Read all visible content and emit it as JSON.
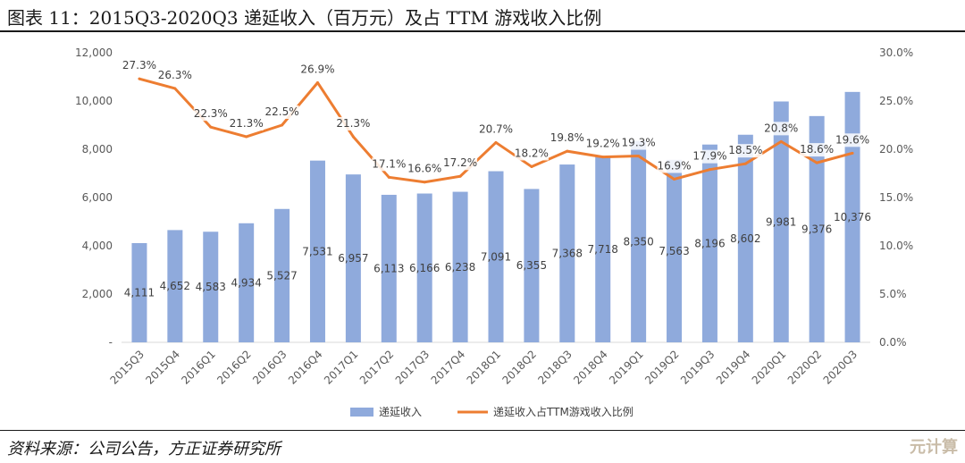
{
  "title": "图表 11：2015Q3-2020Q3 递延收入（百万元）及占 TTM 游戏收入比例",
  "source": "资料来源：公司公告，方正证券研究所",
  "watermark": "元计算",
  "colors": {
    "bar": "#8FAADC",
    "line": "#ED7D31",
    "grid": "#D9D9D9",
    "text": "#595959"
  },
  "chart_data": {
    "type": "bar",
    "title": "",
    "categories": [
      "2015Q3",
      "2015Q4",
      "2016Q1",
      "2016Q2",
      "2016Q3",
      "2016Q4",
      "2017Q1",
      "2017Q2",
      "2017Q3",
      "2017Q4",
      "2018Q1",
      "2018Q2",
      "2018Q3",
      "2018Q4",
      "2019Q1",
      "2019Q2",
      "2019Q3",
      "2019Q4",
      "2020Q1",
      "2020Q2",
      "2020Q3"
    ],
    "series": [
      {
        "name": "递延收入",
        "type": "bar",
        "axis": "left",
        "values": [
          4111,
          4652,
          4583,
          4934,
          5527,
          7531,
          6957,
          6113,
          6166,
          6238,
          7091,
          6355,
          7368,
          7718,
          8350,
          7563,
          8196,
          8602,
          9981,
          9376,
          10376
        ],
        "labels": [
          "4,111",
          "4,652",
          "4,583",
          "4,934",
          "5,527",
          "7,531",
          "6,957",
          "6,113",
          "6,166",
          "6,238",
          "7,091",
          "6,355",
          "7,368",
          "7,718",
          "8,350",
          "7,563",
          "8,196",
          "8,602",
          "9,981",
          "9,376",
          "10,376"
        ]
      },
      {
        "name": "递延收入占TTM游戏收入比例",
        "type": "line",
        "axis": "right",
        "values": [
          27.3,
          26.3,
          22.3,
          21.3,
          22.5,
          26.9,
          21.3,
          17.1,
          16.6,
          17.2,
          20.7,
          18.2,
          19.8,
          19.2,
          19.3,
          16.9,
          17.9,
          18.5,
          20.8,
          18.6,
          19.6
        ],
        "labels": [
          "27.3%",
          "26.3%",
          "22.3%",
          "21.3%",
          "22.5%",
          "26.9%",
          "21.3%",
          "17.1%",
          "16.6%",
          "17.2%",
          "20.7%",
          "18.2%",
          "19.8%",
          "19.2%",
          "19.3%",
          "16.9%",
          "17.9%",
          "18.5%",
          "20.8%",
          "18.6%",
          "19.6%"
        ]
      }
    ],
    "y_left": {
      "min": 0,
      "max": 12000,
      "ticks": [
        "-",
        "2,000",
        "4,000",
        "6,000",
        "8,000",
        "10,000",
        "12,000"
      ]
    },
    "y_right": {
      "min": 0,
      "max": 30,
      "ticks": [
        "0.0%",
        "5.0%",
        "10.0%",
        "15.0%",
        "20.0%",
        "25.0%",
        "30.0%"
      ]
    },
    "grid": false,
    "legend": "bottom"
  }
}
